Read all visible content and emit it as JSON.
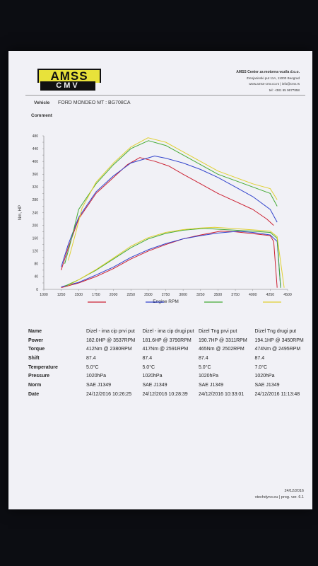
{
  "header": {
    "logo_top": "AMSS",
    "logo_bottom": "CMV",
    "company_name": "AMSS Center za motorna vozila d.o.o.",
    "address": "Zrenjaninski put 11A, 11000 Beograd",
    "web": "www.amss-cmv.co.rs  |  info@cmv.rs",
    "phone": "tel: +381 65 9677858"
  },
  "vehicle": {
    "label": "Vehicle",
    "value": "FORD MONDEO MT : BG708CA"
  },
  "comment_label": "Comment",
  "chart_data": {
    "type": "line",
    "xlabel": "Engine RPM",
    "ylabel": "Nm, HP",
    "xlim": [
      1000,
      4500
    ],
    "ylim": [
      0,
      480
    ],
    "x_ticks": [
      "1000",
      "1250",
      "1500",
      "1750",
      "2000",
      "2250",
      "2500",
      "2750",
      "3000",
      "3250",
      "3500",
      "3750",
      "4000",
      "4250",
      "4500"
    ],
    "y_ticks": [
      "0",
      "20",
      "40",
      "60",
      "80",
      "100",
      "120",
      "140",
      "160",
      "180",
      "200",
      "220",
      "240",
      "260",
      "280",
      "300",
      "320",
      "340",
      "360",
      "380",
      "400",
      "420",
      "440",
      "460",
      "480"
    ],
    "colors": [
      "#cc2233",
      "#3344cc",
      "#44aa33",
      "#e0d030"
    ],
    "series": [
      {
        "name": "Dizel - ima cip prvi put",
        "metric": "torque",
        "x": [
          1250,
          1350,
          1500,
          1750,
          2000,
          2200,
          2380,
          2600,
          2800,
          3000,
          3250,
          3500,
          3750,
          4000,
          4200,
          4300
        ],
        "y": [
          60,
          130,
          220,
          300,
          350,
          390,
          412,
          400,
          385,
          360,
          330,
          300,
          275,
          250,
          220,
          200
        ]
      },
      {
        "name": "Dizel - ima cip prvi put",
        "metric": "power",
        "x": [
          1250,
          1500,
          1750,
          2000,
          2250,
          2500,
          2750,
          3000,
          3250,
          3537,
          3750,
          4000,
          4250,
          4300,
          4350
        ],
        "y": [
          5,
          20,
          40,
          65,
          95,
          120,
          140,
          158,
          170,
          182,
          180,
          174,
          168,
          150,
          5
        ]
      },
      {
        "name": "Dizel - ima cip drugi put",
        "metric": "torque",
        "x": [
          1250,
          1350,
          1500,
          1750,
          2000,
          2250,
          2591,
          2750,
          3000,
          3250,
          3500,
          3750,
          4000,
          4250,
          4350
        ],
        "y": [
          70,
          140,
          225,
          305,
          355,
          395,
          417,
          410,
          395,
          375,
          350,
          320,
          290,
          250,
          210
        ]
      },
      {
        "name": "Dizel - ima cip drugi put",
        "metric": "power",
        "x": [
          1250,
          1500,
          1750,
          2000,
          2250,
          2500,
          2750,
          3000,
          3250,
          3500,
          3790,
          4000,
          4250,
          4350,
          4400
        ],
        "y": [
          8,
          22,
          45,
          70,
          100,
          124,
          143,
          158,
          168,
          176,
          181.6,
          178,
          170,
          150,
          5
        ]
      },
      {
        "name": "Dizel Tng prvi put",
        "metric": "torque",
        "x": [
          1300,
          1400,
          1500,
          1750,
          2000,
          2250,
          2502,
          2750,
          3000,
          3250,
          3500,
          3750,
          4000,
          4250,
          4350
        ],
        "y": [
          80,
          160,
          250,
          330,
          390,
          440,
          465,
          450,
          420,
          390,
          360,
          340,
          320,
          300,
          260
        ]
      },
      {
        "name": "Dizel Tng prvi put",
        "metric": "power",
        "x": [
          1300,
          1500,
          1750,
          2000,
          2250,
          2500,
          2750,
          3000,
          3311,
          3500,
          3750,
          4000,
          4250,
          4350,
          4400
        ],
        "y": [
          10,
          30,
          60,
          95,
          130,
          158,
          175,
          185,
          190.7,
          188,
          185,
          182,
          178,
          160,
          5
        ]
      },
      {
        "name": "Dizel Tng drugi put",
        "metric": "torque",
        "x": [
          1350,
          1450,
          1550,
          1750,
          2000,
          2250,
          2495,
          2750,
          3000,
          3250,
          3500,
          3750,
          4000,
          4250,
          4350
        ],
        "y": [
          90,
          170,
          255,
          335,
          395,
          445,
          474,
          460,
          430,
          400,
          370,
          350,
          330,
          315,
          280
        ]
      },
      {
        "name": "Dizel Tng drugi put",
        "metric": "power",
        "x": [
          1350,
          1500,
          1750,
          2000,
          2250,
          2500,
          2750,
          3000,
          3250,
          3450,
          3750,
          4000,
          4250,
          4350,
          4450
        ],
        "y": [
          12,
          30,
          62,
          98,
          135,
          162,
          178,
          187,
          192,
          194.1,
          190,
          186,
          182,
          165,
          5
        ]
      }
    ]
  },
  "results": {
    "labels": {
      "name": "Name",
      "power": "Power",
      "torque": "Torque",
      "shift": "Shift",
      "temperature": "Temperature",
      "pressure": "Pressure",
      "norm": "Norm",
      "date": "Date"
    },
    "runs": [
      {
        "name": "Dizel - ima cip prvi put",
        "power": "182.0HP @  3537RPM",
        "torque": "412Nm @ 2380RPM",
        "shift": "87.4",
        "temperature": "5.0°C",
        "pressure": "1020hPa",
        "norm": "SAE J1349",
        "date": "24/12/2016 10:26:25"
      },
      {
        "name": "Dizel - ima cip drugi put",
        "power": "181.6HP @  3790RPM",
        "torque": "417Nm @ 2591RPM",
        "shift": "87.4",
        "temperature": "5.0°C",
        "pressure": "1020hPa",
        "norm": "SAE J1349",
        "date": "24/12/2016 10:28:39"
      },
      {
        "name": "Dizel Tng prvi put",
        "power": "190.7HP @  3311RPM",
        "torque": "465Nm @ 2502RPM",
        "shift": "87.4",
        "temperature": "5.0°C",
        "pressure": "1020hPa",
        "norm": "SAE J1349",
        "date": "24/12/2016 10:33:01"
      },
      {
        "name": "Dizel Tng drugi put",
        "power": "194.1HP @  3450RPM",
        "torque": "474Nm @ 2495RPM",
        "shift": "87.4",
        "temperature": "7.0°C",
        "pressure": "1020hPa",
        "norm": "SAE J1349",
        "date": "24/12/2016 11:13:48"
      }
    ]
  },
  "footer": {
    "date": "24/12/2016",
    "software": "vtechdyno.eu | prog. ver. 6.1"
  }
}
